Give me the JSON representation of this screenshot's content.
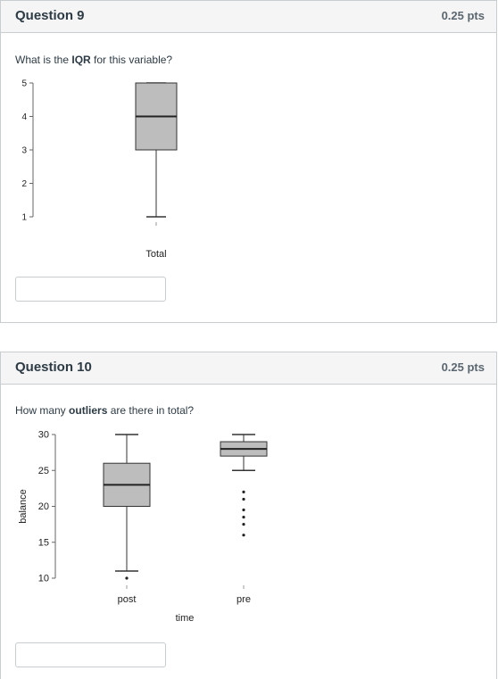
{
  "questions": [
    {
      "title": "Question 9",
      "points": "0.25 pts",
      "prompt_pre": "What is the ",
      "prompt_bold": "IQR",
      "prompt_post": " for this variable?",
      "answer_value": ""
    },
    {
      "title": "Question 10",
      "points": "0.25 pts",
      "prompt_pre": "How many ",
      "prompt_bold": "outliers",
      "prompt_post": " are there in total?",
      "answer_value": ""
    }
  ],
  "colors": {
    "box_fill": "#bdbdbd",
    "header_bg": "#f5f5f5",
    "border": "#c7cdd1"
  },
  "chart_data": [
    {
      "type": "boxplot",
      "xlabel": "",
      "ylabel": "",
      "ylim": [
        1,
        5
      ],
      "yticks": [
        1,
        2,
        3,
        4,
        5
      ],
      "categories": [
        "Total"
      ],
      "boxes": [
        {
          "category": "Total",
          "whisker_low": 1,
          "q1": 3,
          "median": 4,
          "q3": 5,
          "whisker_high": 5,
          "outliers": []
        }
      ]
    },
    {
      "type": "boxplot",
      "xlabel": "time",
      "ylabel": "balance",
      "ylim": [
        10,
        30
      ],
      "yticks": [
        10,
        15,
        20,
        25,
        30
      ],
      "categories": [
        "post",
        "pre"
      ],
      "boxes": [
        {
          "category": "post",
          "whisker_low": 11,
          "q1": 20,
          "median": 23,
          "q3": 26,
          "whisker_high": 30,
          "outliers": [
            10
          ]
        },
        {
          "category": "pre",
          "whisker_low": 25,
          "q1": 27,
          "median": 28,
          "q3": 29,
          "whisker_high": 30,
          "outliers": [
            22,
            21,
            19.5,
            18.5,
            17.5,
            16
          ]
        }
      ]
    }
  ]
}
